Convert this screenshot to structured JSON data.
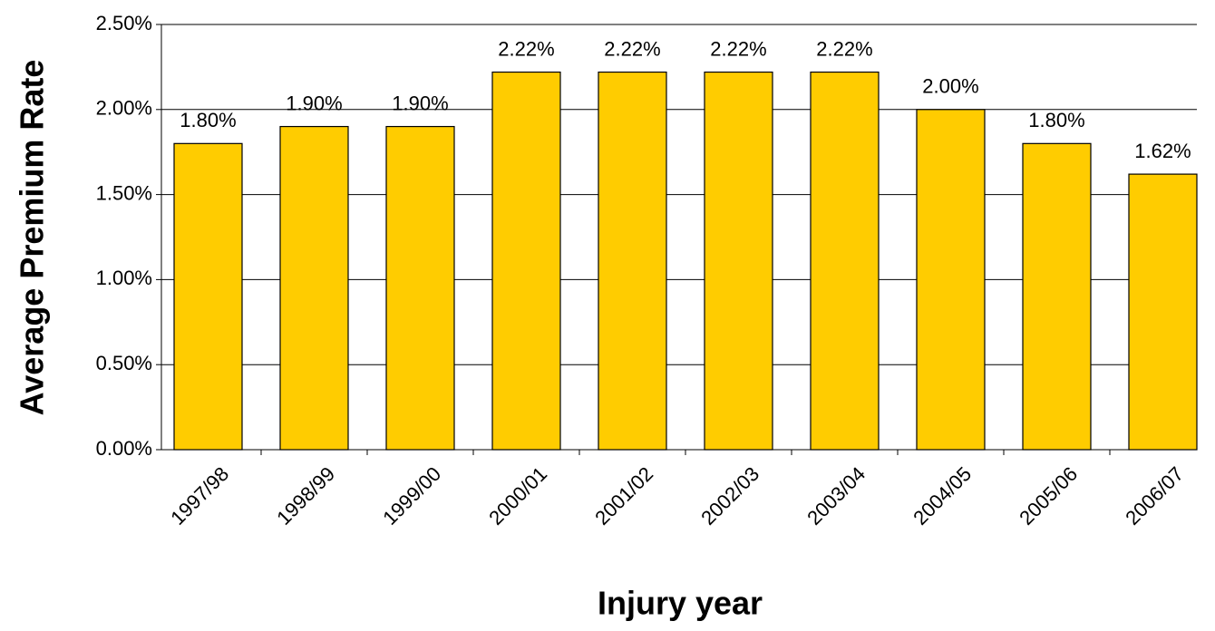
{
  "chart_data": {
    "type": "bar",
    "x_label": "Injury year",
    "y_label": "Average Premium Rate",
    "categories": [
      "1997/98",
      "1998/99",
      "1999/00",
      "2000/01",
      "2001/02",
      "2002/03",
      "2003/04",
      "2004/05",
      "2005/06",
      "2006/07"
    ],
    "values": [
      1.8,
      1.9,
      1.9,
      2.22,
      2.22,
      2.22,
      2.22,
      2.0,
      1.8,
      1.62
    ],
    "value_labels": [
      "1.80%",
      "1.90%",
      "1.90%",
      "2.22%",
      "2.22%",
      "2.22%",
      "2.22%",
      "2.00%",
      "1.80%",
      "1.62%"
    ],
    "color": "#ffcc00",
    "ylim": [
      0,
      2.5
    ],
    "yticks": [
      {
        "value": 0,
        "label": "0.00%"
      },
      {
        "value": 0.5,
        "label": "0.50%"
      },
      {
        "value": 1,
        "label": "1.00%"
      },
      {
        "value": 1.5,
        "label": "1.50%"
      },
      {
        "value": 2,
        "label": "2.00%"
      },
      {
        "value": 2.5,
        "label": "2.50%"
      }
    ],
    "grid": true
  }
}
